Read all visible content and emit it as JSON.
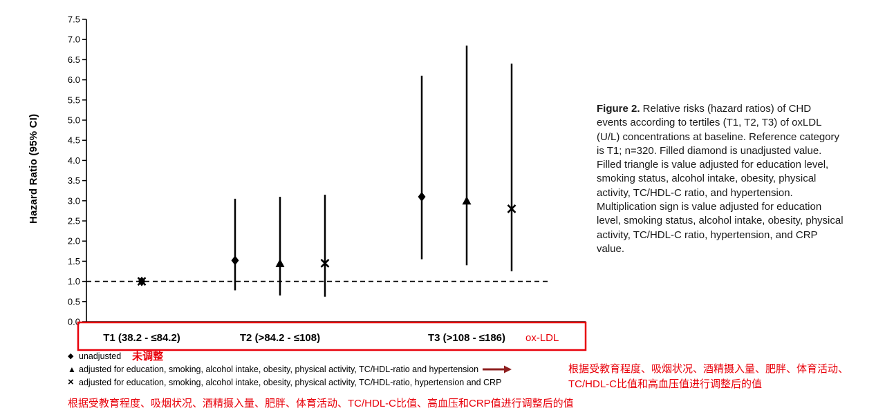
{
  "annotations": {
    "accent_color": "#e8000a",
    "arrow_color": "#8e1f1f",
    "unadjusted_cn": "未调整",
    "adjusted_cn_line1": "根据受教育程度、吸烟状况、酒精摄入量、肥胖、体育活动、",
    "adjusted_cn_line2": "TC/HDL-C比值和高血压值进行调整后的值",
    "adjusted_crp_cn": "根据受教育程度、吸烟状况、酒精摄入量、肥胖、体育活动、TC/HDL-C比值、高血压和CRP值进行调整后的值"
  },
  "chart_data": {
    "type": "scatter",
    "subtype": "forest-plot-with-error-bars",
    "title": "",
    "xlabel": "",
    "ylabel": "Hazard Ratio (95% CI)",
    "ylim": [
      0.0,
      7.5
    ],
    "ytick_step": 0.5,
    "reference_line": 1.0,
    "x_axis_unit": "ox-LDL",
    "grid": false,
    "groups": [
      {
        "label": "T1 (38.2 - ≤84.2)",
        "points": [
          {
            "marker": "diamond",
            "value": 1.0,
            "lo": 1.0,
            "hi": 1.0
          },
          {
            "marker": "x",
            "value": 1.0,
            "lo": 1.0,
            "hi": 1.0
          }
        ]
      },
      {
        "label": "T2 (>84.2 - ≤108)",
        "points": [
          {
            "marker": "diamond",
            "value": 1.52,
            "lo": 0.78,
            "hi": 3.05
          },
          {
            "marker": "triangle",
            "value": 1.45,
            "lo": 0.65,
            "hi": 3.1
          },
          {
            "marker": "x",
            "value": 1.45,
            "lo": 0.62,
            "hi": 3.15
          }
        ]
      },
      {
        "label": "T3 (>108 - ≤186)",
        "points": [
          {
            "marker": "diamond",
            "value": 3.1,
            "lo": 1.55,
            "hi": 6.1
          },
          {
            "marker": "triangle",
            "value": 3.0,
            "lo": 1.4,
            "hi": 6.85
          },
          {
            "marker": "x",
            "value": 2.8,
            "lo": 1.25,
            "hi": 6.4
          }
        ]
      }
    ],
    "legend": [
      {
        "glyph": "◆",
        "label": "unadjusted"
      },
      {
        "glyph": "▲",
        "label": "adjusted for education, smoking, alcohol intake, obesity, physical activity, TC/HDL-ratio and hypertension"
      },
      {
        "glyph": "×",
        "label": "adjusted for education, smoking, alcohol intake, obesity, physical activity, TC/HDL-ratio, hypertension and CRP"
      }
    ]
  },
  "figure_caption": {
    "label": "Figure 2.",
    "body": " Relative risks (hazard ratios) of CHD events according to tertiles (T1, T2, T3) of oxLDL (U/L) concentrations at baseline. Reference category is T1; n=320. Filled diamond is unadjusted value. Filled triangle is value adjusted for education level, smoking status, alcohol intake, obesity, physical activity, TC/HDL-C ratio, and hypertension. Multiplication sign is value adjusted for education level, smoking status, alcohol intake, obesity, physical activity, TC/HDL-C ratio, hypertension, and CRP value."
  }
}
